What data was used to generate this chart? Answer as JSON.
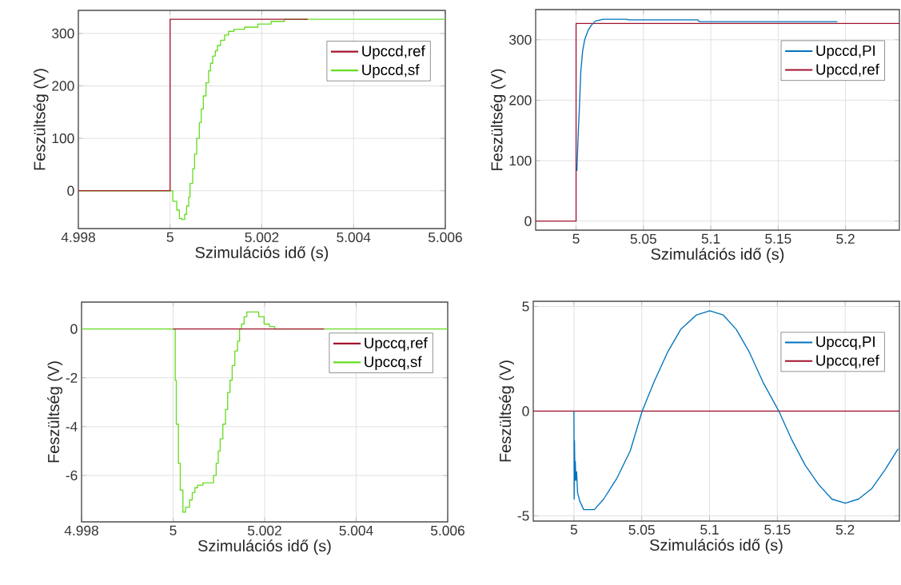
{
  "chart_data": [
    {
      "type": "line",
      "xlabel": "Szimulációs idő (s)",
      "ylabel": "Feszültség (V)",
      "xlim": [
        4.998,
        5.006
      ],
      "ylim": [
        -72,
        344
      ],
      "xticks": [
        4.998,
        5,
        5.002,
        5.004,
        5.006
      ],
      "yticks": [
        0,
        100,
        200,
        300
      ],
      "grid": true,
      "legend": "top right",
      "series": [
        {
          "name": "Upccd,ref",
          "color": "#a2142f",
          "type": "step",
          "x": [
            4.998,
            5,
            5.003
          ],
          "values": [
            0,
            327,
            327
          ]
        },
        {
          "name": "Upccd,sf",
          "color": "#66dd22",
          "type": "step",
          "x": [
            4.998,
            5.000058,
            5.000145,
            5.000203,
            5.000261,
            5.000319,
            5.00036,
            5.000406,
            5.000435,
            5.000493,
            5.000533,
            5.00058,
            5.000638,
            5.000678,
            5.000725,
            5.000783,
            5.000841,
            5.000881,
            5.000928,
            5.000986,
            5.001032,
            5.001101,
            5.001188,
            5.001275,
            5.001391,
            5.001623,
            5.001913,
            5.002203,
            5.002493,
            5.006
          ],
          "values": [
            0,
            -20,
            -37,
            -53,
            -55,
            -45,
            -29,
            -12,
            14,
            42,
            70,
            100,
            130,
            156,
            181,
            206,
            229,
            243,
            257,
            267,
            277,
            287,
            297,
            304,
            308,
            312,
            318,
            323,
            327,
            327
          ]
        }
      ]
    },
    {
      "type": "line",
      "xlabel": "Szimulációs idő (s)",
      "ylabel": "Feszültség (V)",
      "xlim": [
        4.97,
        5.24
      ],
      "ylim": [
        -15,
        350
      ],
      "xticks": [
        5,
        5.05,
        5.1,
        5.15,
        5.2
      ],
      "yticks": [
        0,
        100,
        200,
        300
      ],
      "grid": true,
      "legend": "top right",
      "series": [
        {
          "name": "Upccd,PI",
          "color": "#0072bd",
          "x": [
            5.0006,
            5.0016,
            5.0025,
            5.0035,
            5.0049,
            5.0064,
            5.0088,
            5.0113,
            5.0143,
            5.0201,
            5.0377,
            5.0387,
            5.0904,
            5.0914,
            5.194
          ],
          "values": [
            83,
            145,
            189,
            247,
            282,
            300,
            315,
            324,
            331,
            334,
            334,
            333,
            333,
            330,
            330
          ]
        },
        {
          "name": "Upccd,ref",
          "color": "#a2142f",
          "type": "step",
          "x": [
            4.97,
            5,
            5.24
          ],
          "values": [
            0,
            327,
            327
          ]
        }
      ]
    },
    {
      "type": "line",
      "xlabel": "Szimulációs idő (s)",
      "ylabel": "Feszültség (V)",
      "xlim": [
        4.998,
        5.006
      ],
      "ylim": [
        -7.9,
        1.1
      ],
      "xticks": [
        4.998,
        5,
        5.002,
        5.004,
        5.006
      ],
      "yticks": [
        -6,
        -4,
        -2,
        0
      ],
      "grid": true,
      "legend": "top right",
      "series": [
        {
          "name": "Upccq,ref",
          "color": "#a2142f",
          "x": [
            5,
            5.0033
          ],
          "values": [
            0,
            0
          ]
        },
        {
          "name": "Upccq,sf",
          "color": "#66dd22",
          "type": "step",
          "x": [
            4.998,
            5.0000465,
            5.00007,
            5.000116,
            5.000157,
            5.000215,
            5.000273,
            5.00036,
            5.000419,
            5.000477,
            5.000535,
            5.000651,
            5.000884,
            5.000942,
            5.000988,
            5.001029,
            5.001087,
            5.001145,
            5.001192,
            5.001244,
            5.001291,
            5.001349,
            5.001407,
            5.001453,
            5.001494,
            5.001552,
            5.00161,
            5.001669,
            5.001756,
            5.001872,
            5.001988,
            5.002105,
            5.002221,
            5.002395,
            5.002657,
            5.006
          ],
          "values": [
            0,
            -2.1,
            -3.9,
            -5.5,
            -6.6,
            -7.5,
            -7.3,
            -7,
            -6.7,
            -6.5,
            -6.4,
            -6.3,
            -6,
            -5.5,
            -5,
            -4.5,
            -3.9,
            -3.3,
            -2.6,
            -2.1,
            -1.5,
            -0.9,
            -0.5,
            0,
            0.2,
            0.5,
            0.7,
            0.7,
            0.7,
            0.5,
            0.2,
            0.1,
            0,
            0,
            0,
            0
          ]
        }
      ]
    },
    {
      "type": "line",
      "xlabel": "Szimulációs idő (s)",
      "ylabel": "Feszültség (V)",
      "xlim": [
        4.97,
        5.24
      ],
      "ylim": [
        -5.25,
        5.25
      ],
      "xticks": [
        5,
        5.05,
        5.1,
        5.15,
        5.2
      ],
      "yticks": [
        -5,
        0,
        5
      ],
      "grid": true,
      "legend": "top right",
      "series": [
        {
          "name": "Upccq,PI",
          "color": "#0072bd",
          "x": [
            5.0,
            5.0002,
            5.0004,
            5.0008,
            5.001,
            5.0014,
            5.002,
            5.0027,
            5.0043,
            5.0072,
            5.0102,
            5.0151,
            5.0219,
            5.0317,
            5.0415,
            5.0503,
            5.0591,
            5.0689,
            5.0787,
            5.0904,
            5.1002,
            5.11,
            5.1198,
            5.1295,
            5.1393,
            5.1511,
            5.1609,
            5.1707,
            5.1804,
            5.1902,
            5.2,
            5.2098,
            5.2196,
            5.2294,
            5.239
          ],
          "values": [
            0,
            -4.2,
            -1.4,
            -3.3,
            -2.4,
            -3.3,
            -2.9,
            -3.9,
            -4.3,
            -4.7,
            -4.7,
            -4.7,
            -4.2,
            -3.2,
            -1.9,
            0,
            1.4,
            2.8,
            3.9,
            4.6,
            4.8,
            4.6,
            3.9,
            2.8,
            1.4,
            0,
            -1.4,
            -2.6,
            -3.5,
            -4.2,
            -4.4,
            -4.2,
            -3.7,
            -2.8,
            -1.8
          ]
        },
        {
          "name": "Upccq,ref",
          "color": "#a2142f",
          "x": [
            4.97,
            5.24
          ],
          "values": [
            0,
            0
          ]
        }
      ]
    }
  ]
}
